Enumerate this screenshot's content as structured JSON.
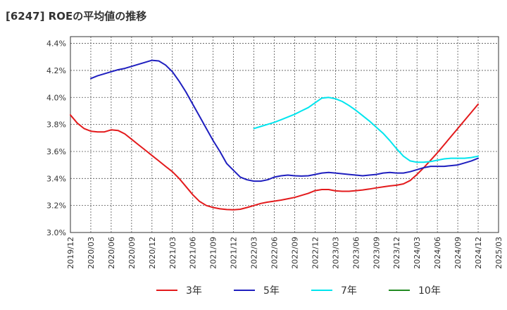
{
  "chart_data": {
    "type": "line",
    "title": "[6247]  ROEの平均値の推移",
    "xlabel": "",
    "ylabel": "",
    "ylim": [
      3.0,
      4.45
    ],
    "yticks": [
      3.0,
      3.2,
      3.4,
      3.6,
      3.8,
      4.0,
      4.2,
      4.4
    ],
    "ytick_labels": [
      "3.0%",
      "3.2%",
      "3.4%",
      "3.6%",
      "3.8%",
      "4.0%",
      "4.2%",
      "4.4%"
    ],
    "xticks": [
      "2019/12",
      "2020/03",
      "2020/06",
      "2020/09",
      "2020/12",
      "2021/03",
      "2021/06",
      "2021/09",
      "2021/12",
      "2022/03",
      "2022/06",
      "2022/09",
      "2022/12",
      "2023/03",
      "2023/06",
      "2023/09",
      "2023/12",
      "2024/03",
      "2024/06",
      "2024/09",
      "2024/12",
      "2025/03"
    ],
    "grid": true,
    "legend_position": "bottom",
    "series": [
      {
        "name": "3年",
        "color": "#e31a1c",
        "points": [
          [
            "2019/12",
            3.87
          ],
          [
            "2020/01",
            3.81
          ],
          [
            "2020/02",
            3.77
          ],
          [
            "2020/03",
            3.75
          ],
          [
            "2020/04",
            3.745
          ],
          [
            "2020/05",
            3.745
          ],
          [
            "2020/06",
            3.76
          ],
          [
            "2020/07",
            3.755
          ],
          [
            "2020/08",
            3.73
          ],
          [
            "2020/09",
            3.69
          ],
          [
            "2020/10",
            3.65
          ],
          [
            "2020/11",
            3.61
          ],
          [
            "2020/12",
            3.57
          ],
          [
            "2021/01",
            3.53
          ],
          [
            "2021/02",
            3.49
          ],
          [
            "2021/03",
            3.45
          ],
          [
            "2021/04",
            3.4
          ],
          [
            "2021/05",
            3.34
          ],
          [
            "2021/06",
            3.28
          ],
          [
            "2021/07",
            3.23
          ],
          [
            "2021/08",
            3.2
          ],
          [
            "2021/09",
            3.185
          ],
          [
            "2021/10",
            3.175
          ],
          [
            "2021/11",
            3.17
          ],
          [
            "2021/12",
            3.168
          ],
          [
            "2022/01",
            3.172
          ],
          [
            "2022/02",
            3.185
          ],
          [
            "2022/03",
            3.2
          ],
          [
            "2022/04",
            3.215
          ],
          [
            "2022/05",
            3.225
          ],
          [
            "2022/06",
            3.232
          ],
          [
            "2022/07",
            3.24
          ],
          [
            "2022/08",
            3.25
          ],
          [
            "2022/09",
            3.26
          ],
          [
            "2022/10",
            3.275
          ],
          [
            "2022/11",
            3.29
          ],
          [
            "2022/12",
            3.31
          ],
          [
            "2023/01",
            3.318
          ],
          [
            "2023/02",
            3.318
          ],
          [
            "2023/03",
            3.308
          ],
          [
            "2023/04",
            3.305
          ],
          [
            "2023/05",
            3.305
          ],
          [
            "2023/06",
            3.31
          ],
          [
            "2023/07",
            3.315
          ],
          [
            "2023/08",
            3.322
          ],
          [
            "2023/09",
            3.33
          ],
          [
            "2023/10",
            3.338
          ],
          [
            "2023/11",
            3.345
          ],
          [
            "2023/12",
            3.35
          ],
          [
            "2024/01",
            3.36
          ],
          [
            "2024/02",
            3.385
          ],
          [
            "2024/03",
            3.43
          ],
          [
            "2024/04",
            3.48
          ],
          [
            "2024/05",
            3.535
          ],
          [
            "2024/06",
            3.59
          ],
          [
            "2024/07",
            3.65
          ],
          [
            "2024/08",
            3.71
          ],
          [
            "2024/09",
            3.77
          ],
          [
            "2024/10",
            3.83
          ],
          [
            "2024/11",
            3.89
          ],
          [
            "2024/12",
            3.95
          ]
        ]
      },
      {
        "name": "5年",
        "color": "#1f1fbf",
        "points": [
          [
            "2020/03",
            4.14
          ],
          [
            "2020/04",
            4.16
          ],
          [
            "2020/05",
            4.175
          ],
          [
            "2020/06",
            4.19
          ],
          [
            "2020/07",
            4.205
          ],
          [
            "2020/08",
            4.215
          ],
          [
            "2020/09",
            4.23
          ],
          [
            "2020/10",
            4.245
          ],
          [
            "2020/11",
            4.26
          ],
          [
            "2020/12",
            4.275
          ],
          [
            "2021/01",
            4.27
          ],
          [
            "2021/02",
            4.24
          ],
          [
            "2021/03",
            4.19
          ],
          [
            "2021/04",
            4.12
          ],
          [
            "2021/05",
            4.04
          ],
          [
            "2021/06",
            3.95
          ],
          [
            "2021/07",
            3.86
          ],
          [
            "2021/08",
            3.77
          ],
          [
            "2021/09",
            3.68
          ],
          [
            "2021/10",
            3.6
          ],
          [
            "2021/11",
            3.51
          ],
          [
            "2021/12",
            3.46
          ],
          [
            "2022/01",
            3.41
          ],
          [
            "2022/02",
            3.39
          ],
          [
            "2022/03",
            3.38
          ],
          [
            "2022/04",
            3.38
          ],
          [
            "2022/05",
            3.39
          ],
          [
            "2022/06",
            3.41
          ],
          [
            "2022/07",
            3.42
          ],
          [
            "2022/08",
            3.425
          ],
          [
            "2022/09",
            3.42
          ],
          [
            "2022/10",
            3.418
          ],
          [
            "2022/11",
            3.42
          ],
          [
            "2022/12",
            3.43
          ],
          [
            "2023/01",
            3.44
          ],
          [
            "2023/02",
            3.445
          ],
          [
            "2023/03",
            3.44
          ],
          [
            "2023/04",
            3.435
          ],
          [
            "2023/05",
            3.43
          ],
          [
            "2023/06",
            3.425
          ],
          [
            "2023/07",
            3.42
          ],
          [
            "2023/08",
            3.425
          ],
          [
            "2023/09",
            3.43
          ],
          [
            "2023/10",
            3.44
          ],
          [
            "2023/11",
            3.445
          ],
          [
            "2023/12",
            3.44
          ],
          [
            "2024/01",
            3.44
          ],
          [
            "2024/02",
            3.45
          ],
          [
            "2024/03",
            3.465
          ],
          [
            "2024/04",
            3.48
          ],
          [
            "2024/05",
            3.49
          ],
          [
            "2024/06",
            3.49
          ],
          [
            "2024/07",
            3.49
          ],
          [
            "2024/08",
            3.495
          ],
          [
            "2024/09",
            3.5
          ],
          [
            "2024/10",
            3.515
          ],
          [
            "2024/11",
            3.53
          ],
          [
            "2024/12",
            3.55
          ]
        ]
      },
      {
        "name": "7年",
        "color": "#00e5ee",
        "points": [
          [
            "2022/03",
            3.77
          ],
          [
            "2022/04",
            3.785
          ],
          [
            "2022/05",
            3.8
          ],
          [
            "2022/06",
            3.815
          ],
          [
            "2022/07",
            3.835
          ],
          [
            "2022/08",
            3.855
          ],
          [
            "2022/09",
            3.875
          ],
          [
            "2022/10",
            3.9
          ],
          [
            "2022/11",
            3.925
          ],
          [
            "2022/12",
            3.96
          ],
          [
            "2023/01",
            3.995
          ],
          [
            "2023/02",
            4.0
          ],
          [
            "2023/03",
            3.99
          ],
          [
            "2023/04",
            3.97
          ],
          [
            "2023/05",
            3.94
          ],
          [
            "2023/06",
            3.905
          ],
          [
            "2023/07",
            3.865
          ],
          [
            "2023/08",
            3.825
          ],
          [
            "2023/09",
            3.78
          ],
          [
            "2023/10",
            3.735
          ],
          [
            "2023/11",
            3.68
          ],
          [
            "2023/12",
            3.62
          ],
          [
            "2024/01",
            3.565
          ],
          [
            "2024/02",
            3.53
          ],
          [
            "2024/03",
            3.52
          ],
          [
            "2024/04",
            3.52
          ],
          [
            "2024/05",
            3.525
          ],
          [
            "2024/06",
            3.535
          ],
          [
            "2024/07",
            3.545
          ],
          [
            "2024/08",
            3.55
          ],
          [
            "2024/09",
            3.55
          ],
          [
            "2024/10",
            3.55
          ],
          [
            "2024/11",
            3.555
          ],
          [
            "2024/12",
            3.565
          ]
        ]
      },
      {
        "name": "10年",
        "color": "#228b22",
        "points": []
      }
    ]
  }
}
